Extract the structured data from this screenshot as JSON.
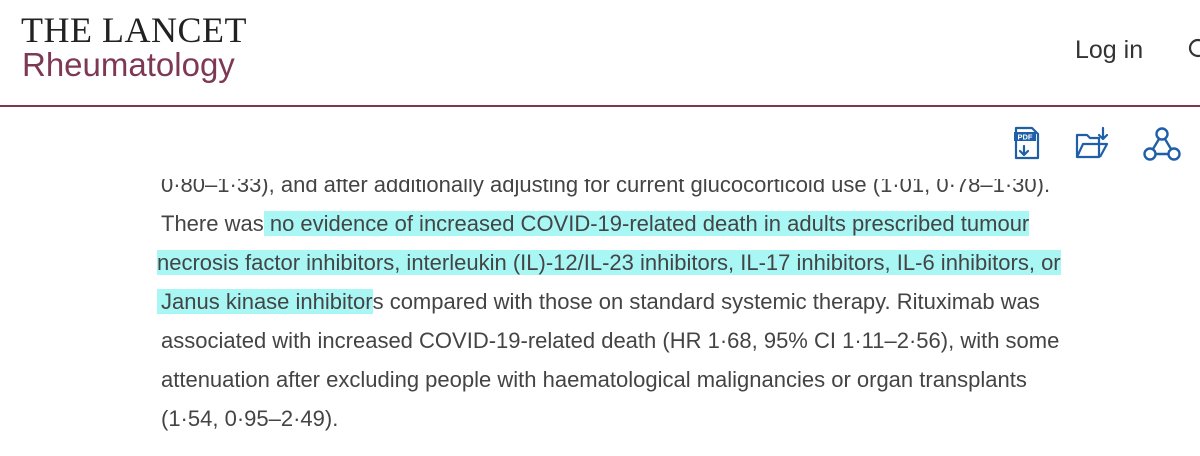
{
  "header": {
    "journal_name_top": "THE LANCET",
    "journal_name_sub": "Rheumatology",
    "login_label": "Log in"
  },
  "toolbar": {
    "icons": [
      "pdf-icon",
      "download-folder-icon",
      "share-network-icon"
    ]
  },
  "article": {
    "line1": "0·80–1·33), and after additionally adjusting for current glucocorticoid use (1·01, 0·78–1·30).",
    "line2_pre": "There was",
    "line2_hl": " no evidence of increased COVID-19-related death in adults prescribed tumour",
    "line3_hl": " necrosis factor inhibitors, interleukin (IL)-12/IL-23 inhibitors, IL-17 inhibitors, IL-6 inhibitors, or",
    "line4_hl": "Janus kinase inhibitor",
    "line4_post": "s compared with those on standard systemic therapy. Rituximab was",
    "line5": "associated with increased COVID-19-related death (HR 1·68, 95% CI 1·11–2·56), with some",
    "line6": "attenuation after excluding people with haematological malignancies or organ transplants",
    "line7": "(1·54, 0·95–2·49)."
  },
  "colors": {
    "brand": "#7d3954",
    "highlight": "#a8f7f4",
    "icon": "#1f5fa8"
  }
}
